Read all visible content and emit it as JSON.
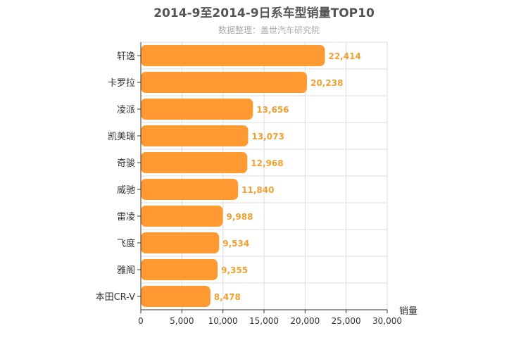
{
  "chart_data": {
    "type": "bar",
    "orientation": "horizontal",
    "title": "2014-9至2014-9日系车型销量TOP10",
    "subtitle": "数据整理：盖世汽车研究院",
    "xlabel": "销量",
    "ylabel": "",
    "categories": [
      "轩逸",
      "卡罗拉",
      "凌派",
      "凯美瑞",
      "奇骏",
      "威驰",
      "雷凌",
      "飞度",
      "雅阁",
      "本田CR-V"
    ],
    "values": [
      22414,
      20238,
      13656,
      13073,
      12968,
      11840,
      9988,
      9534,
      9355,
      8478
    ],
    "value_labels": [
      "22,414",
      "20,238",
      "13,656",
      "13,073",
      "12,968",
      "11,840",
      "9,988",
      "9,534",
      "9,355",
      "8,478"
    ],
    "xlim": [
      0,
      30000
    ],
    "ticks": [
      0,
      5000,
      10000,
      15000,
      20000,
      25000,
      30000
    ],
    "tick_labels": [
      "0",
      "5,000",
      "10,000",
      "15,000",
      "20,000",
      "25,000",
      "30,000"
    ],
    "grid": true,
    "legend": "none",
    "colors": {
      "bar": "#ff9a33",
      "value": "#f0a030",
      "grid": "#dddddd",
      "axis": "#333333"
    }
  }
}
